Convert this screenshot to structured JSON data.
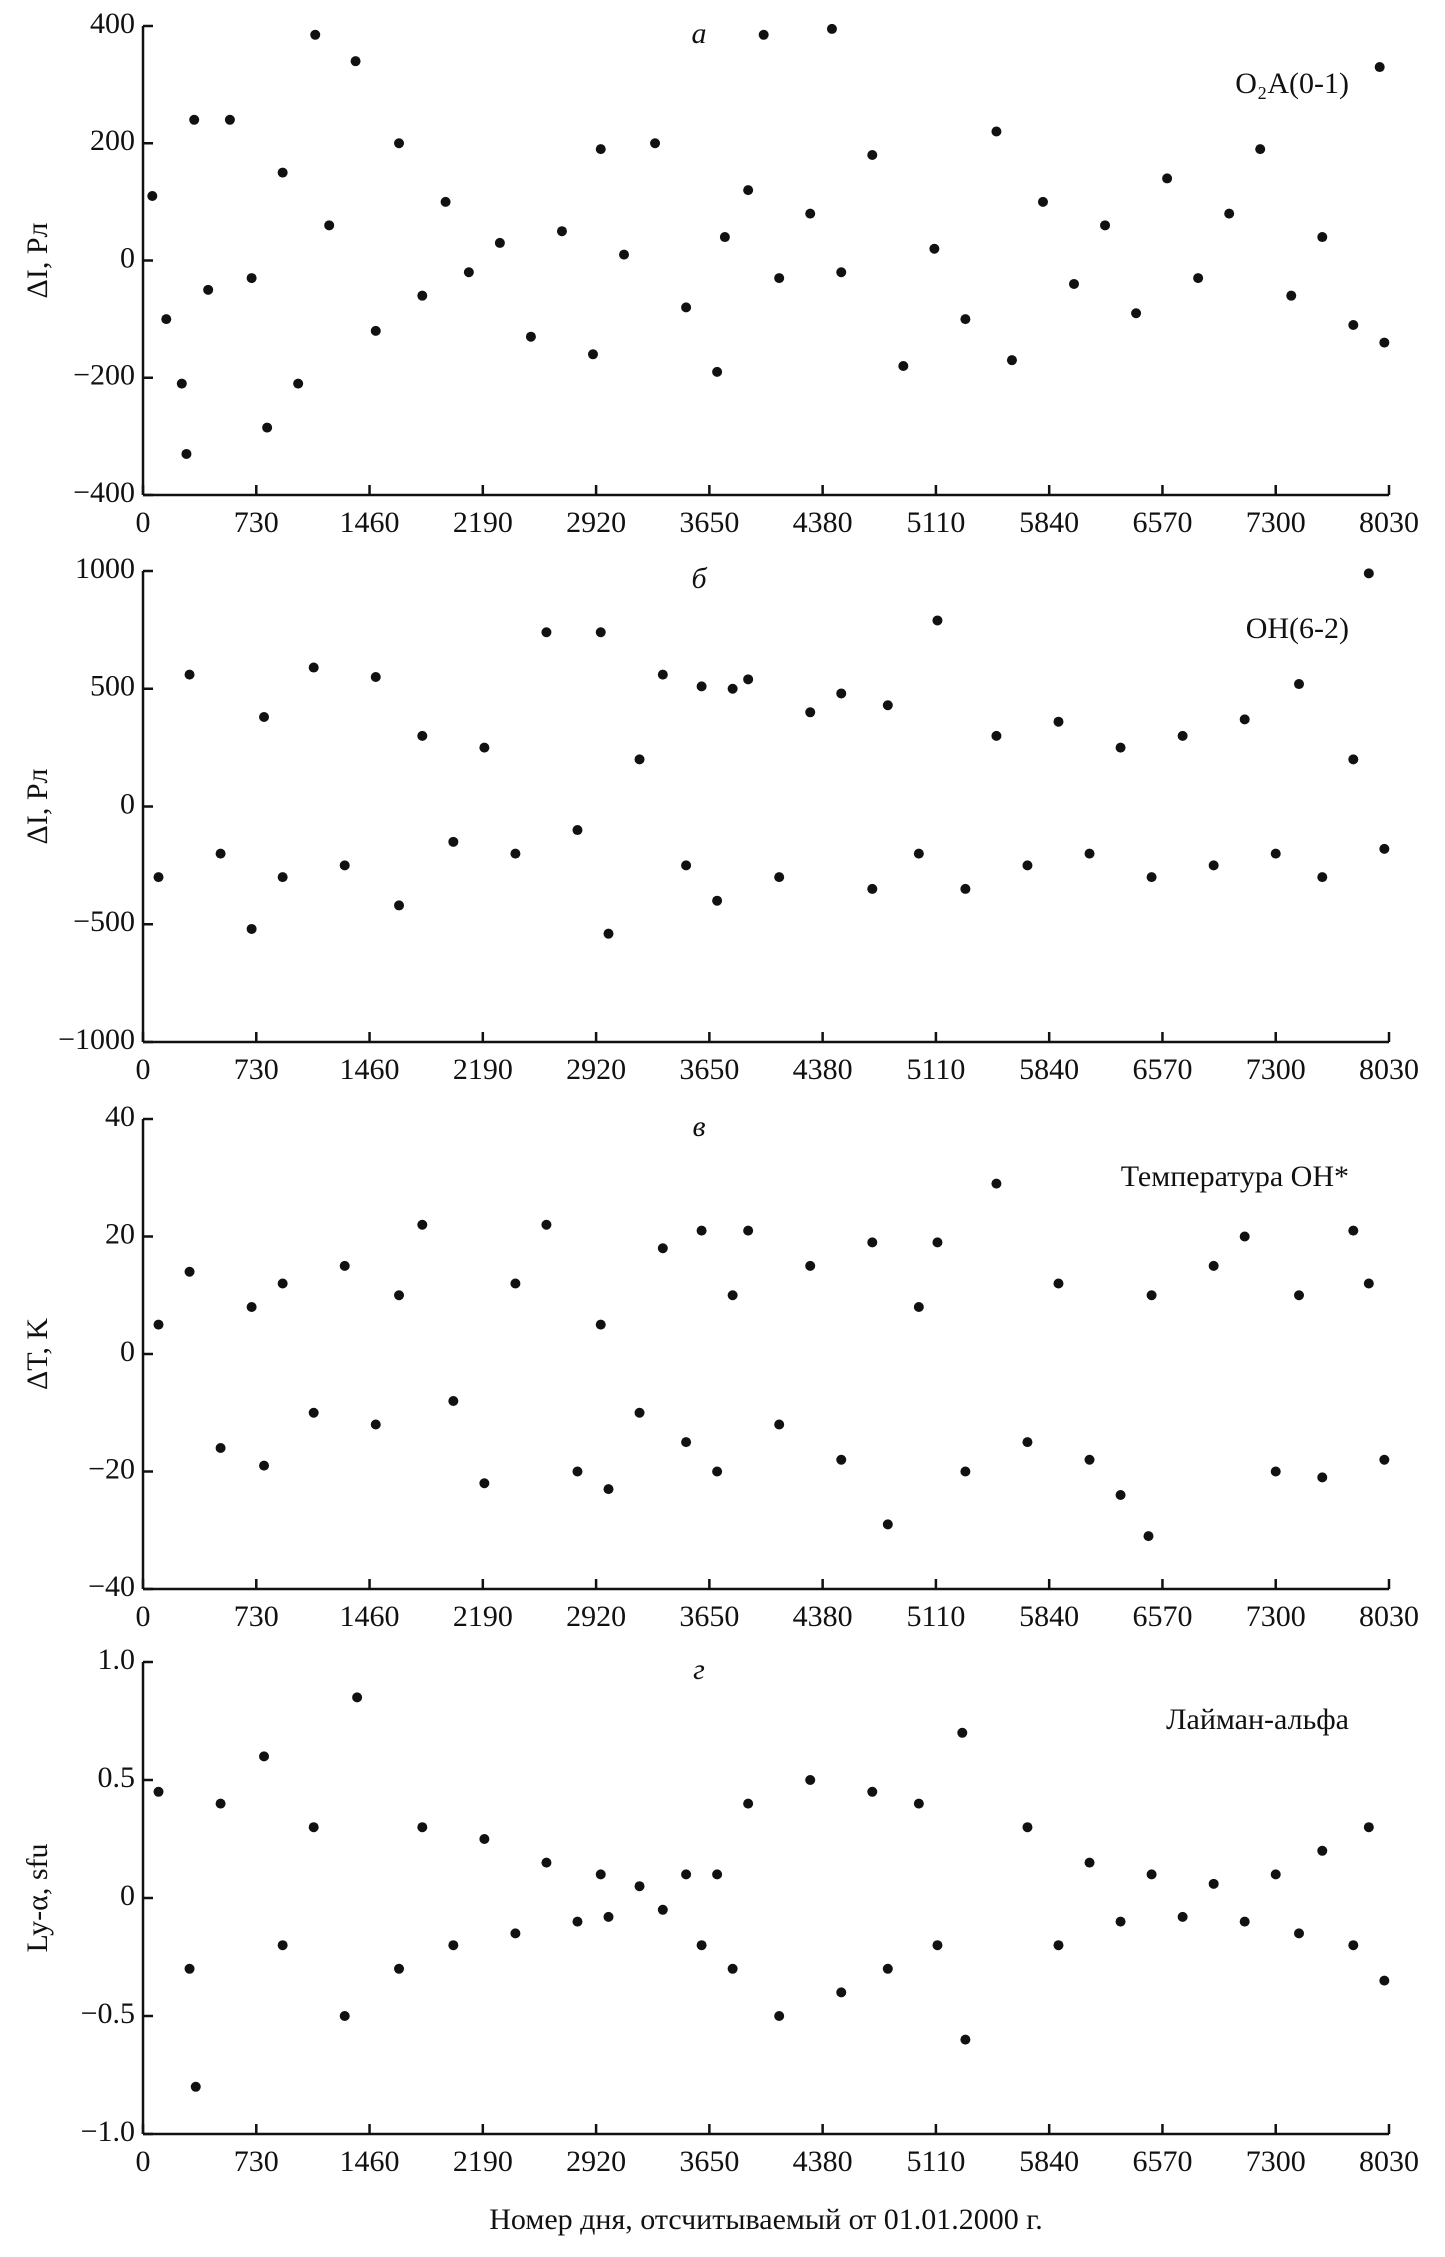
{
  "chart_data": [
    {
      "type": "scatter",
      "title": "а",
      "annotation": "O₂A(0-1)",
      "ylabel": "ΔI, Рл",
      "color": "#111111",
      "xlim": [
        0,
        8030
      ],
      "xticks": [
        0,
        730,
        1460,
        2190,
        2920,
        3650,
        4380,
        5110,
        5840,
        6570,
        7300,
        8030
      ],
      "ylim": [
        -400,
        400
      ],
      "yticks": [
        {
          "value": -400,
          "label": "−400"
        },
        {
          "value": -200,
          "label": "−200"
        },
        0,
        200,
        400
      ],
      "x": [
        60,
        150,
        250,
        280,
        330,
        420,
        560,
        700,
        800,
        900,
        1000,
        1110,
        1200,
        1370,
        1500,
        1650,
        1800,
        1950,
        2100,
        2300,
        2500,
        2700,
        2900,
        2950,
        3100,
        3300,
        3500,
        3700,
        3750,
        3900,
        4000,
        4100,
        4300,
        4440,
        4500,
        4700,
        4900,
        5100,
        5300,
        5500,
        5600,
        5800,
        6000,
        6200,
        6400,
        6600,
        6800,
        7000,
        7200,
        7400,
        7600,
        7800,
        7970,
        8000
      ],
      "values": [
        110,
        -100,
        -210,
        -330,
        240,
        -50,
        240,
        -30,
        -285,
        150,
        -210,
        385,
        60,
        340,
        -120,
        200,
        -60,
        100,
        -20,
        30,
        -130,
        50,
        -160,
        190,
        10,
        200,
        -80,
        -190,
        40,
        120,
        385,
        -30,
        80,
        395,
        -20,
        180,
        -180,
        20,
        -100,
        220,
        -170,
        100,
        -40,
        60,
        -90,
        140,
        -30,
        80,
        190,
        -60,
        40,
        -110,
        330,
        -140
      ]
    },
    {
      "type": "scatter",
      "title": "б",
      "annotation": "OH(6-2)",
      "ylabel": "ΔI, Рл",
      "color": "#111111",
      "xlim": [
        0,
        8030
      ],
      "xticks": [
        0,
        730,
        1460,
        2190,
        2920,
        3650,
        4380,
        5110,
        5840,
        6570,
        7300,
        8030
      ],
      "ylim": [
        -1000,
        1000
      ],
      "yticks": [
        {
          "value": -1000,
          "label": "−1000"
        },
        {
          "value": -500,
          "label": "−500"
        },
        0,
        500,
        1000
      ],
      "x": [
        100,
        300,
        500,
        700,
        780,
        900,
        1100,
        1300,
        1500,
        1650,
        1800,
        2000,
        2200,
        2400,
        2600,
        2800,
        2950,
        3000,
        3200,
        3350,
        3500,
        3600,
        3700,
        3800,
        3900,
        4100,
        4300,
        4500,
        4700,
        4800,
        5000,
        5120,
        5300,
        5500,
        5700,
        5900,
        6100,
        6300,
        6500,
        6700,
        6900,
        7100,
        7300,
        7450,
        7600,
        7800,
        7900,
        8000
      ],
      "values": [
        -300,
        560,
        -200,
        -520,
        380,
        -300,
        590,
        -250,
        550,
        -420,
        300,
        -150,
        250,
        -200,
        740,
        -100,
        740,
        -540,
        200,
        560,
        -250,
        510,
        -400,
        500,
        540,
        -300,
        400,
        480,
        -350,
        430,
        -200,
        790,
        -350,
        300,
        -250,
        360,
        -200,
        250,
        -300,
        300,
        -250,
        370,
        -200,
        520,
        -300,
        200,
        990,
        -180
      ]
    },
    {
      "type": "scatter",
      "title": "в",
      "annotation": "Температура OH*",
      "ylabel": "ΔT, K",
      "color": "#111111",
      "xlim": [
        0,
        8030
      ],
      "xticks": [
        0,
        730,
        1460,
        2190,
        2920,
        3650,
        4380,
        5110,
        5840,
        6570,
        7300,
        8030
      ],
      "ylim": [
        -40,
        40
      ],
      "yticks": [
        {
          "value": -40,
          "label": "−40"
        },
        {
          "value": -20,
          "label": "−20"
        },
        0,
        20,
        40
      ],
      "x": [
        100,
        300,
        500,
        700,
        780,
        900,
        1100,
        1300,
        1500,
        1650,
        1800,
        2000,
        2200,
        2400,
        2600,
        2800,
        2950,
        3000,
        3200,
        3350,
        3500,
        3600,
        3700,
        3800,
        3900,
        4100,
        4300,
        4500,
        4700,
        4800,
        5000,
        5120,
        5300,
        5500,
        5700,
        5900,
        6100,
        6300,
        6500,
        6480,
        6900,
        7100,
        7300,
        7450,
        7600,
        7800,
        7900,
        8000
      ],
      "values": [
        5,
        14,
        -16,
        8,
        -19,
        12,
        -10,
        15,
        -12,
        10,
        22,
        -8,
        -22,
        12,
        22,
        -20,
        5,
        -23,
        -10,
        18,
        -15,
        21,
        -20,
        10,
        21,
        -12,
        15,
        -18,
        19,
        -29,
        8,
        19,
        -20,
        29,
        -15,
        12,
        -18,
        -24,
        10,
        -31,
        15,
        20,
        -20,
        10,
        -21,
        21,
        12,
        -18
      ]
    },
    {
      "type": "scatter",
      "title": "г",
      "annotation": "Лайман-альфа",
      "ylabel": "Ly-α, sfu",
      "xlabel": "Номер дня, отсчитываемый от 01.01.2000 г.",
      "color": "#111111",
      "xlim": [
        0,
        8030
      ],
      "xticks": [
        0,
        730,
        1460,
        2190,
        2920,
        3650,
        4380,
        5110,
        5840,
        6570,
        7300,
        8030
      ],
      "ylim": [
        -1,
        1
      ],
      "yticks": [
        {
          "value": -1,
          "label": "−1.0"
        },
        {
          "value": -0.5,
          "label": "−0.5"
        },
        0,
        0.5,
        {
          "value": 1,
          "label": "1.0"
        }
      ],
      "x": [
        100,
        300,
        500,
        340,
        780,
        900,
        1100,
        1300,
        1380,
        1650,
        1800,
        2000,
        2200,
        2400,
        2600,
        2800,
        2950,
        3000,
        3200,
        3350,
        3500,
        3600,
        3700,
        3800,
        3900,
        4100,
        4300,
        4500,
        4700,
        4800,
        5000,
        5120,
        5280,
        5300,
        5700,
        5900,
        6100,
        6300,
        6500,
        6700,
        6900,
        7100,
        7300,
        7450,
        7600,
        7800,
        7900,
        8000
      ],
      "values": [
        0.45,
        -0.3,
        0.4,
        -0.8,
        0.6,
        -0.2,
        0.3,
        -0.5,
        0.85,
        -0.3,
        0.3,
        -0.2,
        0.25,
        -0.15,
        0.15,
        -0.1,
        0.1,
        -0.08,
        0.05,
        -0.05,
        0.1,
        -0.2,
        0.1,
        -0.3,
        0.4,
        -0.5,
        0.5,
        -0.4,
        0.45,
        -0.3,
        0.4,
        -0.2,
        0.7,
        -0.6,
        0.3,
        -0.2,
        0.15,
        -0.1,
        0.1,
        -0.08,
        0.06,
        -0.1,
        0.1,
        -0.15,
        0.2,
        -0.2,
        0.3,
        -0.35
      ]
    }
  ]
}
